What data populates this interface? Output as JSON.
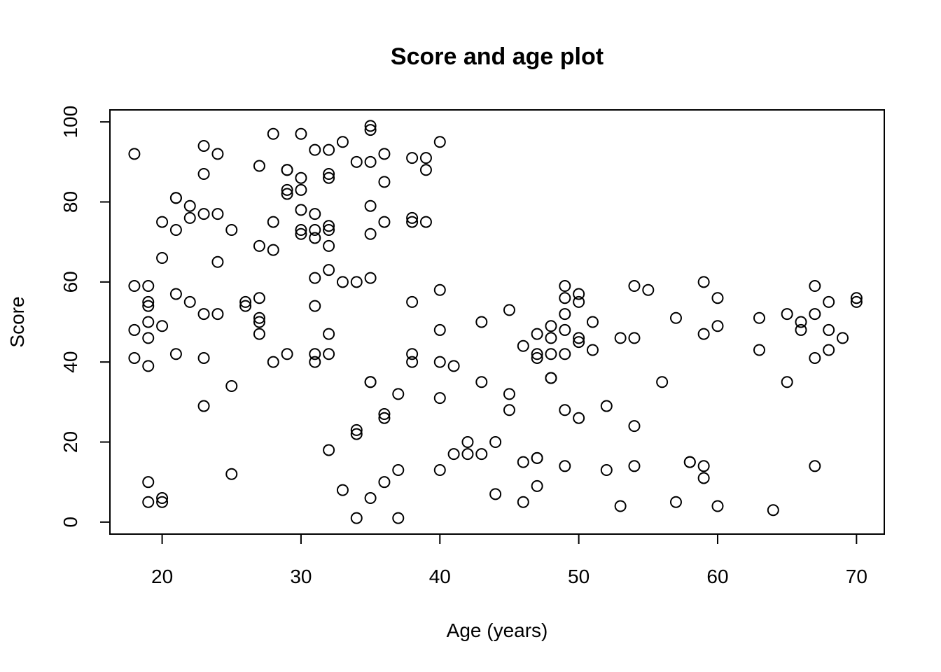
{
  "chart_data": {
    "type": "scatter",
    "title": "Score and age plot",
    "xlabel": "Age (years)",
    "ylabel": "Score",
    "xlim": [
      16.24,
      72.0
    ],
    "ylim": [
      -3.0,
      103.0
    ],
    "xticks": [
      20,
      30,
      40,
      50,
      60,
      70
    ],
    "yticks": [
      0,
      20,
      40,
      60,
      80,
      100
    ],
    "grid": false,
    "legend": "none",
    "point_color": "#000000",
    "points": [
      [
        18,
        92
      ],
      [
        18,
        59
      ],
      [
        18,
        48
      ],
      [
        18,
        41
      ],
      [
        19,
        59
      ],
      [
        19,
        55
      ],
      [
        19,
        54
      ],
      [
        19,
        50
      ],
      [
        19,
        46
      ],
      [
        19,
        39
      ],
      [
        19,
        10
      ],
      [
        19,
        5
      ],
      [
        20,
        75
      ],
      [
        20,
        66
      ],
      [
        20,
        49
      ],
      [
        20,
        6
      ],
      [
        20,
        5
      ],
      [
        21,
        81
      ],
      [
        21,
        81
      ],
      [
        21,
        73
      ],
      [
        21,
        57
      ],
      [
        21,
        42
      ],
      [
        22,
        79
      ],
      [
        22,
        76
      ],
      [
        22,
        55
      ],
      [
        23,
        94
      ],
      [
        23,
        87
      ],
      [
        23,
        77
      ],
      [
        23,
        52
      ],
      [
        23,
        41
      ],
      [
        23,
        29
      ],
      [
        24,
        92
      ],
      [
        24,
        77
      ],
      [
        24,
        65
      ],
      [
        24,
        52
      ],
      [
        25,
        73
      ],
      [
        25,
        34
      ],
      [
        25,
        12
      ],
      [
        26,
        55
      ],
      [
        26,
        54
      ],
      [
        27,
        89
      ],
      [
        27,
        69
      ],
      [
        27,
        56
      ],
      [
        27,
        51
      ],
      [
        27,
        50
      ],
      [
        27,
        47
      ],
      [
        28,
        97
      ],
      [
        28,
        75
      ],
      [
        28,
        68
      ],
      [
        28,
        40
      ],
      [
        29,
        88
      ],
      [
        29,
        88
      ],
      [
        29,
        83
      ],
      [
        29,
        82
      ],
      [
        29,
        42
      ],
      [
        30,
        97
      ],
      [
        30,
        86
      ],
      [
        30,
        83
      ],
      [
        30,
        78
      ],
      [
        30,
        73
      ],
      [
        30,
        72
      ],
      [
        31,
        93
      ],
      [
        31,
        77
      ],
      [
        31,
        73
      ],
      [
        31,
        71
      ],
      [
        31,
        61
      ],
      [
        31,
        54
      ],
      [
        31,
        42
      ],
      [
        31,
        40
      ],
      [
        32,
        93
      ],
      [
        32,
        87
      ],
      [
        32,
        86
      ],
      [
        32,
        74
      ],
      [
        32,
        73
      ],
      [
        32,
        69
      ],
      [
        32,
        63
      ],
      [
        32,
        47
      ],
      [
        32,
        42
      ],
      [
        32,
        18
      ],
      [
        33,
        95
      ],
      [
        33,
        60
      ],
      [
        33,
        8
      ],
      [
        34,
        90
      ],
      [
        34,
        60
      ],
      [
        34,
        23
      ],
      [
        34,
        22
      ],
      [
        34,
        1
      ],
      [
        35,
        99
      ],
      [
        35,
        98
      ],
      [
        35,
        90
      ],
      [
        35,
        79
      ],
      [
        35,
        72
      ],
      [
        35,
        61
      ],
      [
        35,
        35
      ],
      [
        35,
        35
      ],
      [
        35,
        6
      ],
      [
        36,
        92
      ],
      [
        36,
        85
      ],
      [
        36,
        75
      ],
      [
        36,
        27
      ],
      [
        36,
        26
      ],
      [
        36,
        10
      ],
      [
        37,
        32
      ],
      [
        37,
        13
      ],
      [
        37,
        1
      ],
      [
        38,
        91
      ],
      [
        38,
        76
      ],
      [
        38,
        75
      ],
      [
        38,
        55
      ],
      [
        38,
        42
      ],
      [
        38,
        40
      ],
      [
        39,
        91
      ],
      [
        39,
        88
      ],
      [
        39,
        75
      ],
      [
        40,
        95
      ],
      [
        40,
        58
      ],
      [
        40,
        48
      ],
      [
        40,
        40
      ],
      [
        40,
        31
      ],
      [
        40,
        13
      ],
      [
        41,
        39
      ],
      [
        41,
        17
      ],
      [
        42,
        20
      ],
      [
        42,
        17
      ],
      [
        43,
        50
      ],
      [
        43,
        35
      ],
      [
        43,
        17
      ],
      [
        44,
        20
      ],
      [
        44,
        7
      ],
      [
        45,
        53
      ],
      [
        45,
        32
      ],
      [
        45,
        28
      ],
      [
        46,
        44
      ],
      [
        46,
        15
      ],
      [
        46,
        5
      ],
      [
        47,
        47
      ],
      [
        47,
        42
      ],
      [
        47,
        41
      ],
      [
        47,
        16
      ],
      [
        47,
        16
      ],
      [
        47,
        9
      ],
      [
        48,
        49
      ],
      [
        48,
        46
      ],
      [
        48,
        42
      ],
      [
        48,
        36
      ],
      [
        48,
        36
      ],
      [
        49,
        59
      ],
      [
        49,
        56
      ],
      [
        49,
        52
      ],
      [
        49,
        48
      ],
      [
        49,
        42
      ],
      [
        49,
        28
      ],
      [
        49,
        14
      ],
      [
        50,
        57
      ],
      [
        50,
        55
      ],
      [
        50,
        46
      ],
      [
        50,
        45
      ],
      [
        50,
        26
      ],
      [
        51,
        50
      ],
      [
        51,
        43
      ],
      [
        52,
        29
      ],
      [
        52,
        13
      ],
      [
        53,
        46
      ],
      [
        53,
        4
      ],
      [
        54,
        59
      ],
      [
        54,
        46
      ],
      [
        54,
        24
      ],
      [
        54,
        14
      ],
      [
        55,
        58
      ],
      [
        56,
        35
      ],
      [
        57,
        51
      ],
      [
        57,
        5
      ],
      [
        58,
        15
      ],
      [
        58,
        15
      ],
      [
        59,
        60
      ],
      [
        59,
        47
      ],
      [
        59,
        14
      ],
      [
        59,
        11
      ],
      [
        60,
        56
      ],
      [
        60,
        49
      ],
      [
        60,
        4
      ],
      [
        63,
        51
      ],
      [
        63,
        43
      ],
      [
        64,
        3
      ],
      [
        65,
        52
      ],
      [
        65,
        35
      ],
      [
        66,
        50
      ],
      [
        66,
        48
      ],
      [
        67,
        59
      ],
      [
        67,
        52
      ],
      [
        67,
        41
      ],
      [
        67,
        14
      ],
      [
        68,
        55
      ],
      [
        68,
        48
      ],
      [
        68,
        43
      ],
      [
        69,
        46
      ],
      [
        70,
        56
      ],
      [
        70,
        55
      ]
    ]
  }
}
